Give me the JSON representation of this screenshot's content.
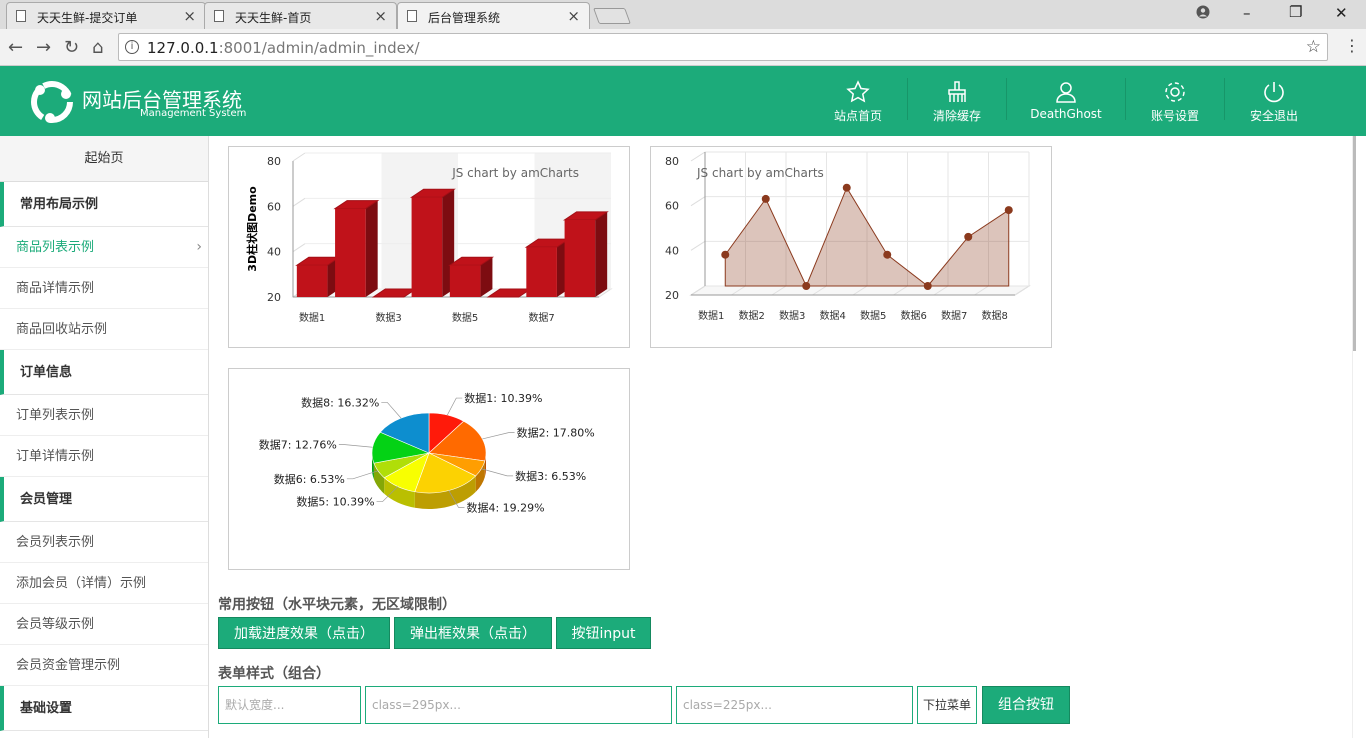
{
  "browser": {
    "tabs": [
      {
        "title": "天天生鲜-提交订单"
      },
      {
        "title": "天天生鲜-首页"
      },
      {
        "title": "后台管理系统"
      }
    ],
    "url_host": "127.0.0.1",
    "url_rest": ":8001/admin/admin_index/"
  },
  "header": {
    "title": "网站后台管理系统",
    "subtitle": "Management System",
    "nav": [
      {
        "label": "站点首页",
        "icon": "star-icon"
      },
      {
        "label": "清除缓存",
        "icon": "broom-icon"
      },
      {
        "label": "DeathGhost",
        "icon": "user-icon"
      },
      {
        "label": "账号设置",
        "icon": "gear-icon"
      },
      {
        "label": "安全退出",
        "icon": "power-icon"
      }
    ]
  },
  "sidebar": {
    "start": "起始页",
    "groups": [
      {
        "title": "常用布局示例",
        "items": [
          "商品列表示例",
          "商品详情示例",
          "商品回收站示例"
        ]
      },
      {
        "title": "订单信息",
        "items": [
          "订单列表示例",
          "订单详情示例"
        ]
      },
      {
        "title": "会员管理",
        "items": [
          "会员列表示例",
          "添加会员（详情）示例",
          "会员等级示例",
          "会员资金管理示例"
        ]
      },
      {
        "title": "基础设置",
        "items": []
      }
    ],
    "active_item": "商品列表示例"
  },
  "chart_data": [
    {
      "type": "bar",
      "three_d": true,
      "watermark": "JS chart by amCharts",
      "ylabel": "3D柱状图Demo",
      "ylim": [
        20,
        80
      ],
      "yticks": [
        20,
        40,
        60,
        80
      ],
      "categories": [
        "数据1",
        "数据2",
        "数据3",
        "数据4",
        "数据5",
        "数据6",
        "数据7",
        "数据8"
      ],
      "visible_category_labels": [
        "数据1",
        "数据3",
        "数据5",
        "数据7"
      ],
      "values": [
        34,
        59,
        20,
        64,
        34,
        20,
        42,
        54
      ],
      "color": "#c0121a"
    },
    {
      "type": "area",
      "three_d": true,
      "watermark": "JS chart by amCharts",
      "ylim": [
        20,
        80
      ],
      "yticks": [
        20,
        40,
        60,
        80
      ],
      "categories": [
        "数据1",
        "数据2",
        "数据3",
        "数据4",
        "数据5",
        "数据6",
        "数据7",
        "数据8"
      ],
      "values": [
        34,
        59,
        20,
        64,
        34,
        20,
        42,
        54
      ],
      "color": "#8b3a1e"
    },
    {
      "type": "pie",
      "three_d": true,
      "slices": [
        {
          "label": "数据1",
          "value": 10.39,
          "text": "数据1: 10.39%",
          "color": "#ff1a0a"
        },
        {
          "label": "数据2",
          "value": 17.8,
          "text": "数据2: 17.80%",
          "color": "#ff6a00"
        },
        {
          "label": "数据3",
          "value": 6.53,
          "text": "数据3: 6.53%",
          "color": "#ff9e01"
        },
        {
          "label": "数据4",
          "value": 19.29,
          "text": "数据4: 19.29%",
          "color": "#fcd202"
        },
        {
          "label": "数据5",
          "value": 10.39,
          "text": "数据5: 10.39%",
          "color": "#f8ff01"
        },
        {
          "label": "数据6",
          "value": 6.53,
          "text": "数据6: 6.53%",
          "color": "#b0de09"
        },
        {
          "label": "数据7",
          "value": 12.76,
          "text": "数据7: 12.76%",
          "color": "#04d215"
        },
        {
          "label": "数据8",
          "value": 16.32,
          "text": "数据8: 16.32%",
          "color": "#0d8ecf"
        }
      ]
    }
  ],
  "buttons_section": {
    "title": "常用按钮（水平块元素，无区域限制）",
    "buttons": [
      "加载进度效果（点击）",
      "弹出框效果（点击）",
      "按钮input"
    ]
  },
  "form_section": {
    "title": "表单样式（组合）",
    "placeholders": [
      "默认宽度...",
      "class=295px...",
      "class=225px..."
    ],
    "select_label": "下拉菜单",
    "submit_label": "组合按钮"
  },
  "colors": {
    "brand": "#1cab7a",
    "bar": "#c0121a",
    "area": "#8b3a1e"
  }
}
